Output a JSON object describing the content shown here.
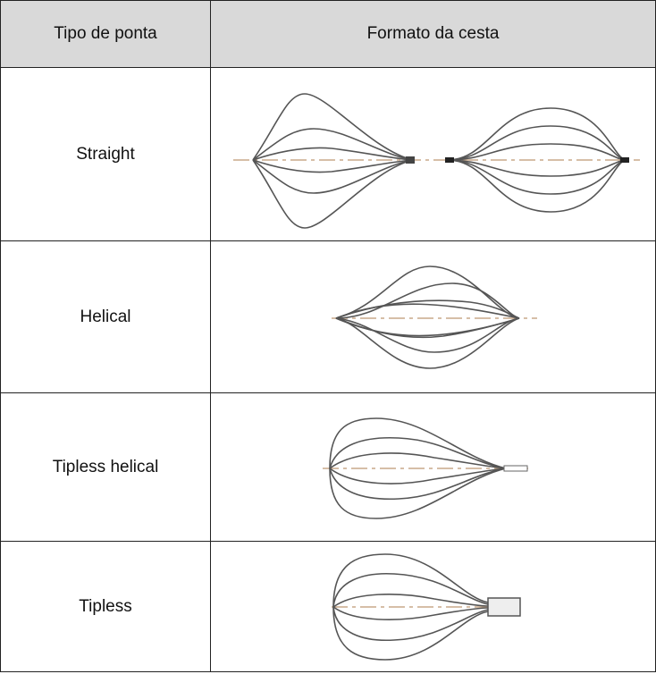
{
  "table": {
    "headers": [
      "Tipo de ponta",
      "Formato da cesta"
    ],
    "rows": [
      [
        "Straight"
      ],
      [
        "Helical"
      ],
      [
        "Tipless helical"
      ],
      [
        "Tipless"
      ]
    ]
  }
}
